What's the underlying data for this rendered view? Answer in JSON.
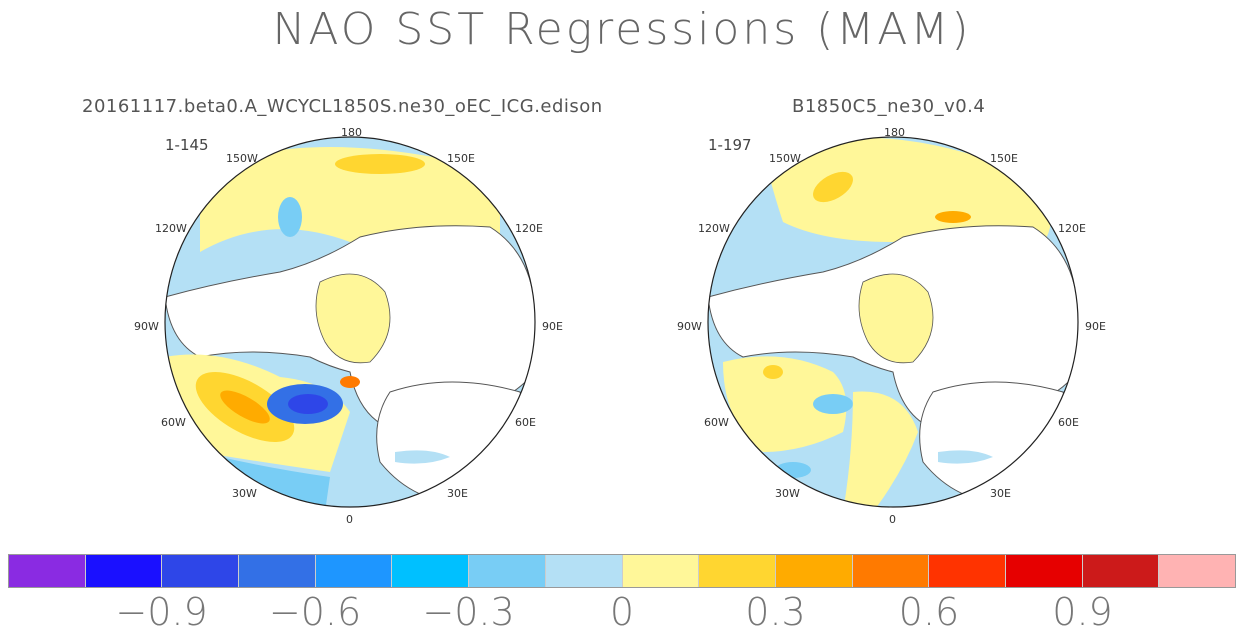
{
  "title": "NAO SST Regressions (MAM)",
  "panels": [
    {
      "title": "20161117.beta0.A_WCYCL1850S.ne30_oEC_ICG.edison",
      "years": "1-145",
      "lon_labels": {
        "n": "180",
        "nw": "150W",
        "ne": "150E",
        "wnw": "120W",
        "ene": "120E",
        "w": "90W",
        "e": "90E",
        "wsw": "60W",
        "ese": "60E",
        "sw": "30W",
        "se": "30E",
        "s": "0"
      }
    },
    {
      "title": "B1850C5_ne30_v0.4",
      "years": "1-197",
      "lon_labels": {
        "n": "180",
        "nw": "150W",
        "ne": "150E",
        "wnw": "120W",
        "ene": "120E",
        "w": "90W",
        "e": "90E",
        "wsw": "60W",
        "ese": "60E",
        "sw": "30W",
        "se": "30E",
        "s": "0"
      }
    }
  ],
  "colorbar": {
    "colors": [
      "#8a2be2",
      "#1a10ff",
      "#2e46e8",
      "#3370e6",
      "#1e96ff",
      "#00c0ff",
      "#78cdf5",
      "#b4e0f5",
      "#fff799",
      "#ffd630",
      "#ffab00",
      "#ff7a00",
      "#ff3300",
      "#e60000",
      "#cc1a1a",
      "#ffb3b3"
    ],
    "labels": [
      "−0.9",
      "−0.6",
      "−0.3",
      "0",
      "0.3",
      "0.6",
      "0.9"
    ]
  },
  "chart_data": {
    "type": "heatmap",
    "title": "NAO SST Regressions (MAM)",
    "projection": "north polar stereographic",
    "contour_levels": [
      -1.05,
      -0.9,
      -0.75,
      -0.6,
      -0.45,
      -0.3,
      -0.15,
      0,
      0.15,
      0.3,
      0.45,
      0.6,
      0.75,
      0.9,
      1.05
    ],
    "colorbar_tick_labels": [
      "-0.9",
      "-0.6",
      "-0.3",
      "0",
      "0.3",
      "0.6",
      "0.9"
    ],
    "panels": [
      {
        "name": "20161117.beta0.A_WCYCL1850S.ne30_oEC_ICG.edison",
        "years": "1-145"
      },
      {
        "name": "B1850C5_ne30_v0.4",
        "years": "1-197"
      }
    ]
  }
}
